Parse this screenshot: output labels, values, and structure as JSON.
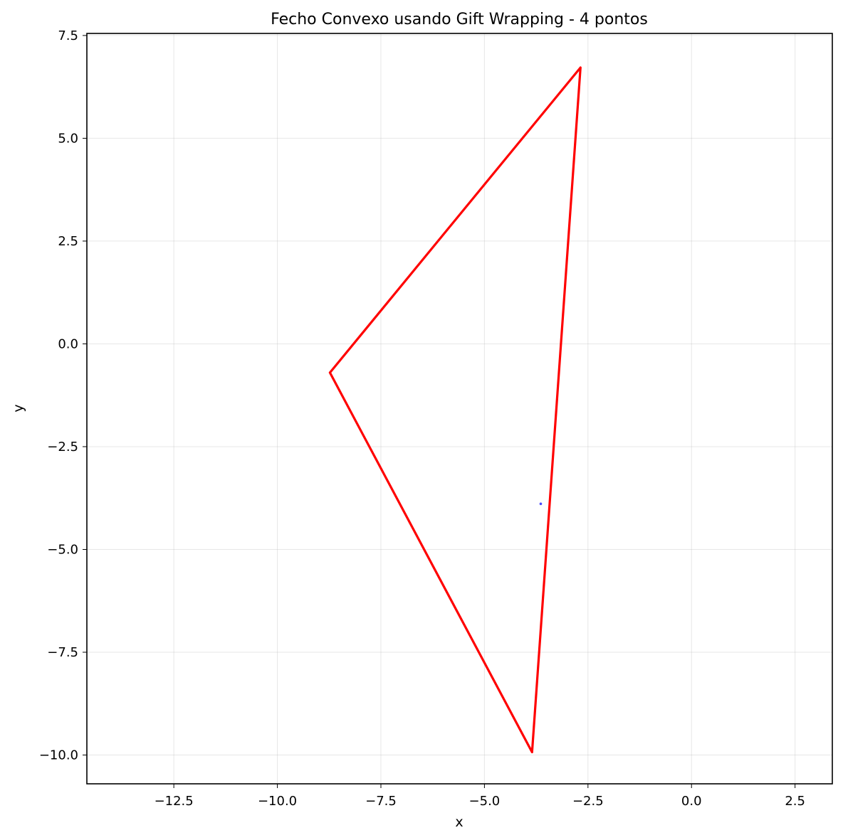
{
  "chart_data": {
    "type": "line",
    "title": "Fecho Convexo usando Gift Wrapping - 4 pontos",
    "xlabel": "x",
    "ylabel": "y",
    "xlim": [
      -14.6,
      3.4
    ],
    "ylim": [
      -10.7,
      7.55
    ],
    "xticks": [
      -12.5,
      -10.0,
      -7.5,
      -5.0,
      -2.5,
      0.0,
      2.5
    ],
    "yticks": [
      -10.0,
      -7.5,
      -5.0,
      -2.5,
      0.0,
      2.5,
      5.0,
      7.5
    ],
    "xtick_labels": [
      "−12.5",
      "−10.0",
      "−7.5",
      "−5.0",
      "−2.5",
      "0.0",
      "2.5"
    ],
    "ytick_labels": [
      "−10.0",
      "−7.5",
      "−5.0",
      "−2.5",
      "0.0",
      "2.5",
      "5.0",
      "7.5"
    ],
    "grid": true,
    "series": [
      {
        "kind": "hull",
        "color": "#ff0000",
        "x": [
          -8.73,
          -2.68,
          -3.85,
          -8.73
        ],
        "y": [
          -0.7,
          6.72,
          -9.93,
          -0.7
        ]
      },
      {
        "kind": "points",
        "color": "#0000ff",
        "x": [
          -3.64
        ],
        "y": [
          -3.89
        ]
      }
    ]
  }
}
